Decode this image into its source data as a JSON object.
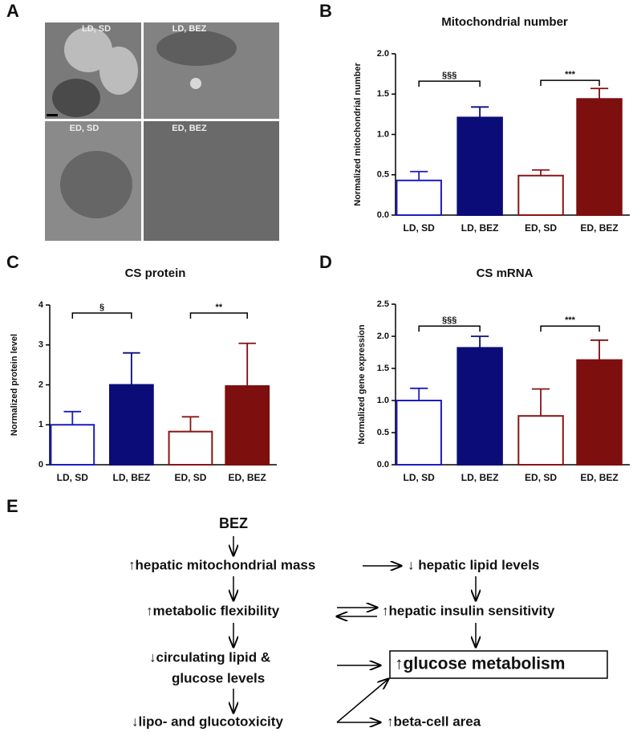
{
  "panels": [
    "A",
    "B",
    "C",
    "D",
    "E"
  ],
  "micrographs": [
    "LD, SD",
    "LD, BEZ",
    "ED, SD",
    "ED, BEZ"
  ],
  "chart_data": [
    {
      "type": "bar",
      "title": "Mitochondrial number",
      "y_label": "Normalized mitochondrial number",
      "categories": [
        "LD, SD",
        "LD, BEZ",
        "ED, SD",
        "ED, BEZ"
      ],
      "values": [
        0.43,
        1.21,
        0.49,
        1.44
      ],
      "errors": [
        0.11,
        0.13,
        0.07,
        0.13
      ],
      "fills": [
        "#ffffff",
        "#0c0c78",
        "#ffffff",
        "#7d0f0f"
      ],
      "edges": [
        "#1c1cc0",
        "#0c0c78",
        "#8a1515",
        "#7d0f0f"
      ],
      "ylim": [
        0,
        2
      ],
      "yticks": [
        {
          "value": 0,
          "label": "0.0"
        },
        {
          "value": 0.5,
          "label": "0.5"
        },
        {
          "value": 1,
          "label": "1.0"
        },
        {
          "value": 1.5,
          "label": "1.5"
        },
        {
          "value": 2,
          "label": "2.0"
        }
      ],
      "significance": [
        {
          "from": 0,
          "to": 1,
          "level": 1.66,
          "label": "§§§"
        },
        {
          "from": 2,
          "to": 3,
          "level": 1.67,
          "label": "***"
        }
      ]
    },
    {
      "type": "bar",
      "title": "CS protein",
      "y_label": "Normalized protein level",
      "categories": [
        "LD, SD",
        "LD, BEZ",
        "ED, SD",
        "ED, BEZ"
      ],
      "values": [
        1.0,
        2.0,
        0.83,
        1.97
      ],
      "errors": [
        0.33,
        0.8,
        0.37,
        1.07
      ],
      "fills": [
        "#ffffff",
        "#0c0c78",
        "#ffffff",
        "#7d0f0f"
      ],
      "edges": [
        "#1c1cc0",
        "#0c0c78",
        "#8a1515",
        "#7d0f0f"
      ],
      "ylim": [
        0,
        4
      ],
      "yticks": [
        0,
        1,
        2,
        3,
        4
      ],
      "significance": [
        {
          "from": 0,
          "to": 1,
          "level": 3.8,
          "label": "§"
        },
        {
          "from": 2,
          "to": 3,
          "level": 3.8,
          "label": "**"
        }
      ]
    },
    {
      "type": "bar",
      "title": "CS mRNA",
      "y_label": "Normalized gene expression",
      "categories": [
        "LD, SD",
        "LD, BEZ",
        "ED, SD",
        "ED, BEZ"
      ],
      "values": [
        1.0,
        1.82,
        0.76,
        1.63
      ],
      "errors": [
        0.19,
        0.18,
        0.42,
        0.31
      ],
      "fills": [
        "#ffffff",
        "#0c0c78",
        "#ffffff",
        "#7d0f0f"
      ],
      "edges": [
        "#1c1cc0",
        "#0c0c78",
        "#8a1515",
        "#7d0f0f"
      ],
      "ylim": [
        0,
        2.5
      ],
      "yticks": [
        {
          "value": 0,
          "label": "0.0"
        },
        {
          "value": 0.5,
          "label": "0.5"
        },
        {
          "value": 1,
          "label": "1.0"
        },
        {
          "value": 1.5,
          "label": "1.5"
        },
        {
          "value": 2,
          "label": "2.0"
        },
        {
          "value": 2.5,
          "label": "2.5"
        }
      ],
      "significance": [
        {
          "from": 0,
          "to": 1,
          "level": 2.16,
          "label": "§§§"
        },
        {
          "from": 2,
          "to": 3,
          "level": 2.16,
          "label": "***"
        }
      ]
    }
  ],
  "diagram": {
    "nodes": [
      {
        "lines": [
          "BEZ"
        ]
      },
      {
        "lines": [
          "↑hepatic mitochondrial mass"
        ]
      },
      {
        "lines": [
          "↓ hepatic lipid levels"
        ]
      },
      {
        "lines": [
          "↑metabolic flexibility"
        ]
      },
      {
        "lines": [
          "↑hepatic insulin sensitivity"
        ]
      },
      {
        "lines": [
          "↓circulating lipid &",
          "glucose levels"
        ]
      },
      {
        "lines": [
          "↑glucose metabolism"
        ],
        "boxed": true
      },
      {
        "lines": [
          "↓lipo- and glucotoxicity"
        ]
      },
      {
        "lines": [
          "↑beta-cell area"
        ]
      }
    ]
  }
}
